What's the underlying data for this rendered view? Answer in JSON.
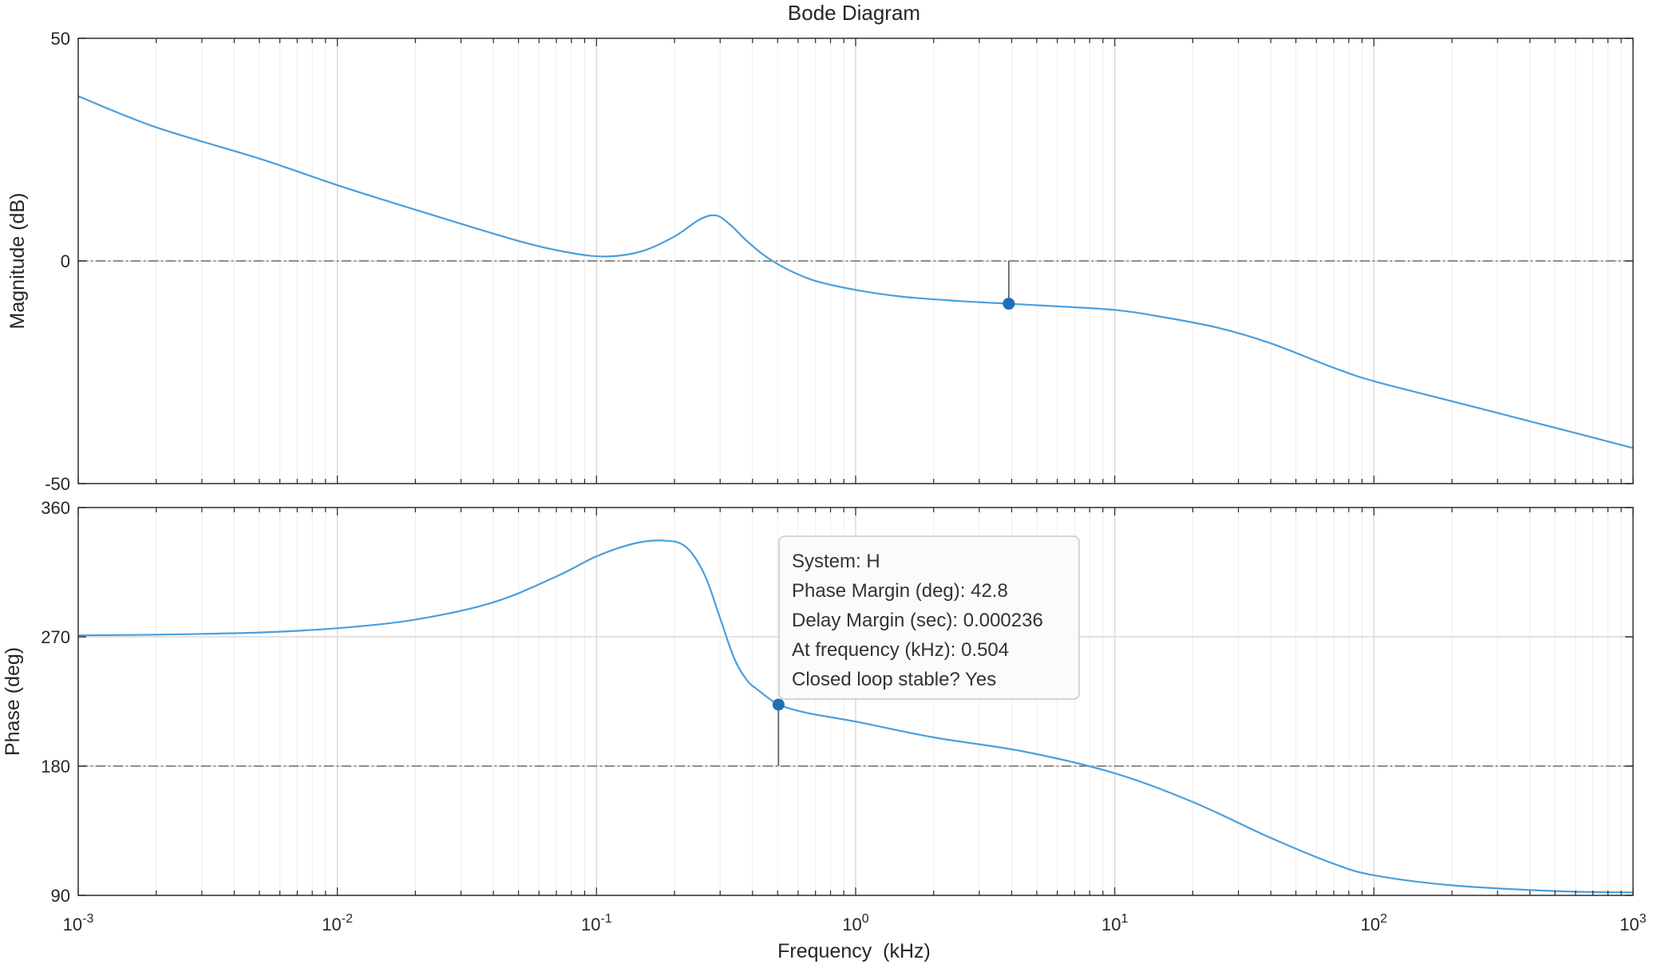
{
  "chart_data": [
    {
      "type": "line",
      "panel": "magnitude",
      "title": "Bode Diagram",
      "ylabel": "Magnitude (dB)",
      "xlabel": "",
      "xscale": "log",
      "xlim": [
        0.001,
        1000
      ],
      "ylim": [
        -50,
        50
      ],
      "yticks": [
        50,
        0,
        -50
      ],
      "ytick_labels": [
        "50",
        "0",
        "-50"
      ],
      "grid": true,
      "reference_line": 0,
      "series": [
        {
          "color": "#4a9fdc",
          "x": [
            0.001,
            0.002,
            0.005,
            0.01,
            0.02,
            0.05,
            0.08,
            0.11,
            0.15,
            0.2,
            0.25,
            0.29,
            0.33,
            0.38,
            0.45,
            0.55,
            0.7,
            1,
            1.5,
            2.5,
            3.9,
            6,
            10,
            15,
            25,
            40,
            70,
            100,
            200,
            400,
            1000
          ],
          "y": [
            37,
            30,
            23,
            17,
            11.5,
            4.5,
            1.8,
            1.0,
            2.2,
            5.5,
            9.3,
            10.2,
            8.0,
            4.5,
            1.0,
            -2.0,
            -4.5,
            -6.5,
            -8.0,
            -9.0,
            -9.6,
            -10.2,
            -11.0,
            -12.5,
            -15.0,
            -18.5,
            -24.0,
            -27.0,
            -31.5,
            -36.0,
            -42.0
          ]
        }
      ],
      "markers": [
        {
          "x": 3.9,
          "y": -9.6,
          "color": "#1f6fb2"
        }
      ]
    },
    {
      "type": "line",
      "panel": "phase",
      "title": "",
      "ylabel": "Phase (deg)",
      "xlabel": "Frequency  (kHz)",
      "xscale": "log",
      "xlim": [
        0.001,
        1000
      ],
      "ylim": [
        90,
        360
      ],
      "yticks": [
        360,
        270,
        180,
        90
      ],
      "ytick_labels": [
        "360",
        "270",
        "180",
        "90"
      ],
      "xticks": [
        0.001,
        0.01,
        0.1,
        1,
        10,
        100,
        1000
      ],
      "xtick_base": [
        "10",
        "10",
        "10",
        "10",
        "10",
        "10",
        "10"
      ],
      "xtick_exp": [
        "-3",
        "-2",
        "-1",
        "0",
        "1",
        "2",
        "3"
      ],
      "grid": true,
      "reference_line": 180,
      "series": [
        {
          "color": "#4a9fdc",
          "x": [
            0.001,
            0.002,
            0.005,
            0.01,
            0.02,
            0.04,
            0.07,
            0.1,
            0.14,
            0.18,
            0.22,
            0.26,
            0.3,
            0.34,
            0.38,
            0.42,
            0.504,
            0.65,
            1,
            2,
            4.5,
            10,
            20,
            40,
            70,
            100,
            200,
            500,
            1000
          ],
          "y": [
            271,
            271.5,
            273,
            276,
            282,
            294,
            312,
            326,
            335,
            337,
            333,
            314,
            283,
            255,
            240,
            233,
            223,
            217,
            211,
            200,
            190,
            175,
            155,
            130,
            112,
            104,
            97,
            93,
            92
          ]
        }
      ],
      "markers": [
        {
          "x": 0.504,
          "y": 222.8,
          "color": "#1f6fb2"
        }
      ]
    }
  ],
  "tooltip": {
    "system": "System: H",
    "phase_margin": "Phase Margin (deg): 42.8",
    "delay_margin": "Delay Margin (sec): 0.000236",
    "frequency": "At frequency (kHz): 0.504",
    "stable": "Closed loop stable? Yes"
  }
}
